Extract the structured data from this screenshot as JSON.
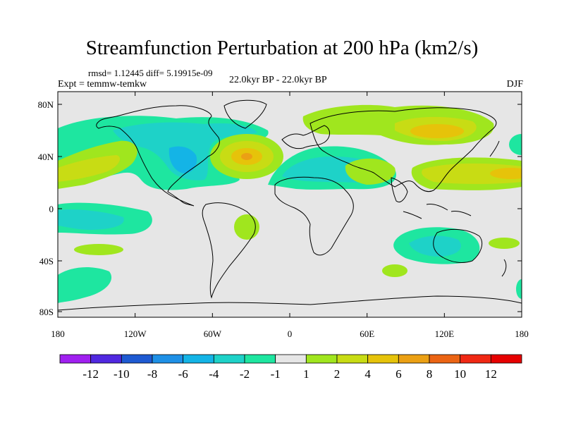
{
  "title": "Streamfunction Perturbation at 200 hPa (km2/s)",
  "stats": "rmsd= 1.12445 diff= 5.19915e-09",
  "expt": "Expt = temmw-temkw",
  "period": "22.0kyr BP - 22.0kyr BP",
  "season": "DJF",
  "map": {
    "background_color": "#e6e6e6",
    "lon_ticks": [
      "180",
      "120W",
      "60W",
      "0",
      "60E",
      "120E",
      "180"
    ],
    "lat_ticks": [
      "80N",
      "40N",
      "0",
      "40S",
      "80S"
    ]
  },
  "colorbar": {
    "labels": [
      "-12",
      "-10",
      "-8",
      "-6",
      "-4",
      "-2",
      "-1",
      "1",
      "2",
      "4",
      "6",
      "8",
      "10",
      "12"
    ],
    "colors": [
      "#a020f0",
      "#5028e0",
      "#1e5ad2",
      "#1e90e6",
      "#14b4e6",
      "#1ed2c8",
      "#1ee6a0",
      "#e6e6e6",
      "#a0e61e",
      "#c8dc14",
      "#e6c30a",
      "#eba014",
      "#eb6414",
      "#f02814",
      "#e60000"
    ]
  }
}
